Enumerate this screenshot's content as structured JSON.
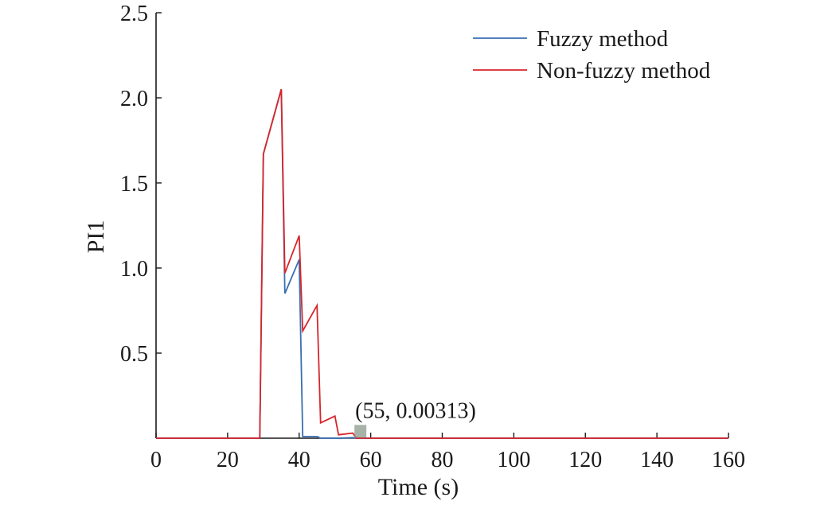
{
  "chart_data": {
    "type": "line",
    "title": "",
    "xlabel": "Time (s)",
    "ylabel": "PI1",
    "xlim": [
      0,
      160
    ],
    "ylim": [
      0,
      2.5
    ],
    "xticks": [
      0,
      20,
      40,
      60,
      80,
      100,
      120,
      140,
      160
    ],
    "xtick_labels": [
      "0",
      "20",
      "40",
      "60",
      "80",
      "100",
      "120",
      "140",
      "160"
    ],
    "yticks": [
      0.5,
      1.0,
      1.5,
      2.0,
      2.5
    ],
    "ytick_labels": [
      "0.5",
      "1.0",
      "1.5",
      "2.0",
      "2.5"
    ],
    "grid": false,
    "legend_position": "top-right",
    "series": [
      {
        "name": "Fuzzy method",
        "color": "#3a6fb0",
        "x": [
          0,
          29,
          30,
          35,
          36,
          40,
          41,
          45,
          46,
          50,
          51,
          55,
          56,
          160
        ],
        "y": [
          0,
          0,
          1.67,
          2.05,
          0.85,
          1.05,
          0.01,
          0.01,
          0.0,
          0.0,
          0.0,
          0.00313,
          0,
          0
        ]
      },
      {
        "name": "Non-fuzzy method",
        "color": "#d6262b",
        "x": [
          0,
          29,
          30,
          35,
          36,
          40,
          41,
          45,
          46,
          50,
          51,
          55,
          56,
          160
        ],
        "y": [
          0,
          0,
          1.67,
          2.05,
          0.97,
          1.19,
          0.63,
          0.78,
          0.09,
          0.13,
          0.02,
          0.03,
          0,
          0
        ]
      }
    ],
    "annotation": {
      "text": "(55, 0.00313)",
      "x": 55,
      "y": 0.00313,
      "marker_color": "#8a9a8a"
    }
  }
}
